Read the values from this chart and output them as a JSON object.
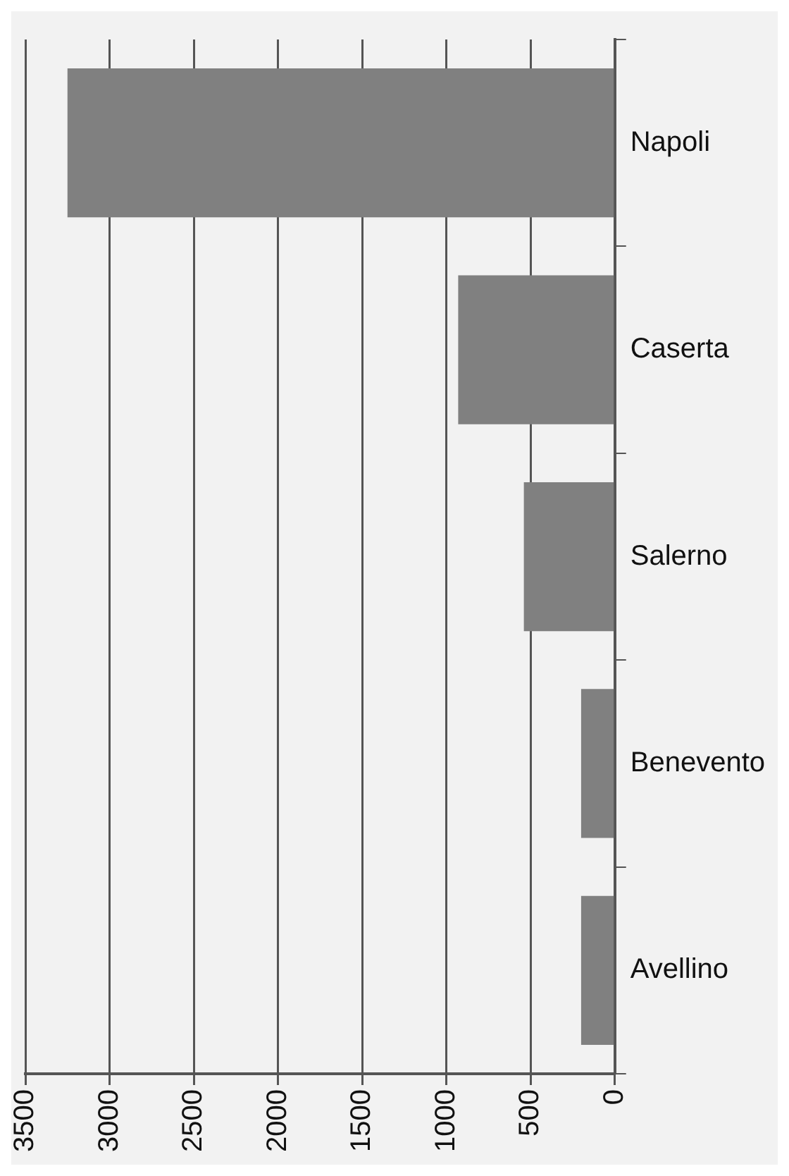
{
  "chart_data": {
    "type": "bar",
    "orientation": "horizontal",
    "categories": [
      "Napoli",
      "Caserta",
      "Salerno",
      "Benevento",
      "Avellino"
    ],
    "values": [
      3250,
      930,
      540,
      200,
      200
    ],
    "color": "#808080",
    "xlim": [
      3500,
      0
    ],
    "xticks": [
      3500,
      3000,
      2500,
      2000,
      1500,
      1000,
      500,
      0
    ],
    "grid": "x",
    "legend": false
  }
}
